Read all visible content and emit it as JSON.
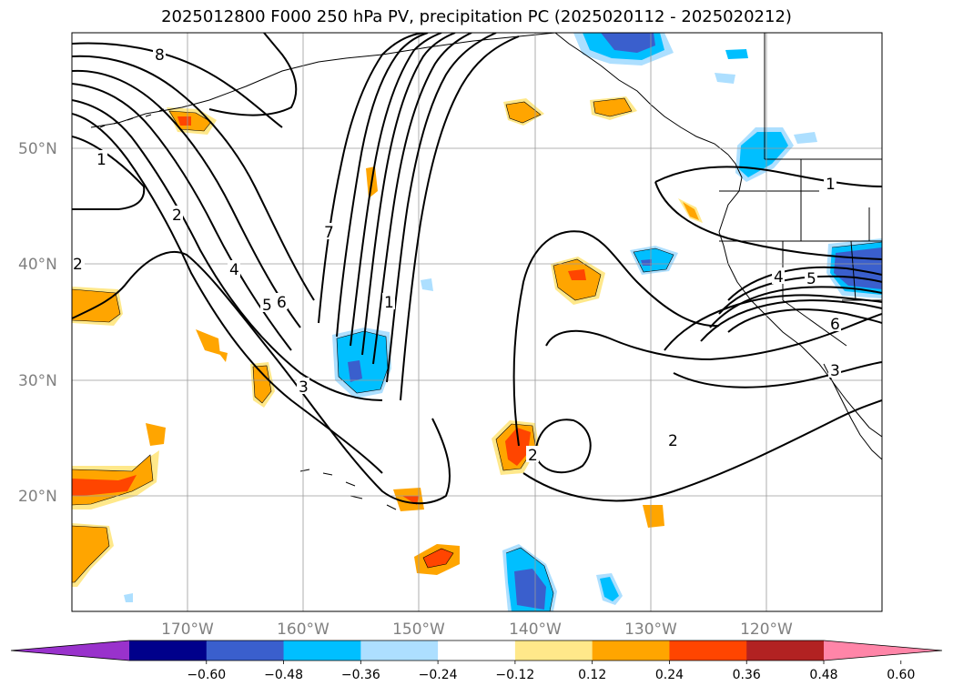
{
  "title": "2025012800 F000 250 hPa PV, precipitation PC (2025020112 - 2025020212)",
  "map": {
    "lat_labels": [
      "50°N",
      "40°N",
      "30°N",
      "20°N"
    ],
    "lon_labels": [
      "170°W",
      "160°W",
      "150°W",
      "140°W",
      "130°W",
      "120°W"
    ],
    "contour_labels": [
      {
        "text": "8",
        "name": "contour-label-8"
      },
      {
        "text": "1",
        "name": "contour-label-1-west"
      },
      {
        "text": "2",
        "name": "contour-label-2-west"
      },
      {
        "text": "2",
        "name": "contour-label-2-edge"
      },
      {
        "text": "4",
        "name": "contour-label-4-west"
      },
      {
        "text": "5",
        "name": "contour-label-5-west"
      },
      {
        "text": "6",
        "name": "contour-label-6-west"
      },
      {
        "text": "3",
        "name": "contour-label-3-west"
      },
      {
        "text": "7",
        "name": "contour-label-7"
      },
      {
        "text": "1",
        "name": "contour-label-1-mid"
      },
      {
        "text": "2",
        "name": "contour-label-2-mid"
      },
      {
        "text": "2",
        "name": "contour-label-2-east"
      },
      {
        "text": "1",
        "name": "contour-label-1-east"
      },
      {
        "text": "4",
        "name": "contour-label-4-east"
      },
      {
        "text": "5",
        "name": "contour-label-5-east"
      },
      {
        "text": "6",
        "name": "contour-label-6-east"
      },
      {
        "text": "3",
        "name": "contour-label-3-east"
      }
    ]
  },
  "colorbar": {
    "colors": [
      "#9932CC",
      "#00008B",
      "#3A5FCD",
      "#00BFFF",
      "#ADDFFF",
      "#FFFFFF",
      "#FFE88A",
      "#FFA500",
      "#FF4500",
      "#B22222",
      "#FF85A8"
    ],
    "tick_labels": [
      "−0.60",
      "−0.48",
      "−0.36",
      "−0.24",
      "−0.12",
      "0.12",
      "0.24",
      "0.36",
      "0.48",
      "0.60"
    ]
  }
}
